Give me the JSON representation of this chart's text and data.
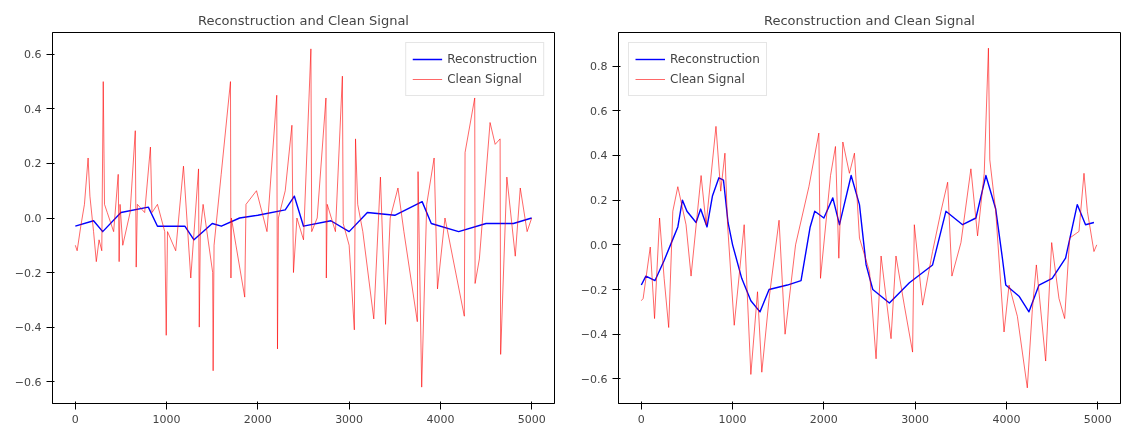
{
  "chart_data": [
    {
      "type": "line",
      "title": "Reconstruction and Clean Signal",
      "legend": "top right",
      "grid": false,
      "xlim": [
        -250,
        5250
      ],
      "ylim": [
        -0.68,
        0.68
      ],
      "xticks": [
        0,
        1000,
        2000,
        3000,
        4000,
        5000
      ],
      "yticks": [
        {
          "value": -0.6,
          "label": "−0.6"
        },
        {
          "value": -0.4,
          "label": "−0.4"
        },
        {
          "value": -0.2,
          "label": "−0.2"
        },
        {
          "value": 0,
          "label": "0.0"
        },
        0.2,
        0.4,
        0.6
      ],
      "series": [
        {
          "name": "Reconstruction",
          "color": "#0000ff",
          "x": [
            0,
            200,
            300,
            500,
            800,
            900,
            1200,
            1300,
            1500,
            1600,
            1800,
            2000,
            2300,
            2400,
            2500,
            2800,
            3000,
            3200,
            3500,
            3800,
            3900,
            4200,
            4500,
            4800,
            5000
          ],
          "values": [
            -0.03,
            -0.01,
            -0.05,
            0.02,
            0.04,
            -0.03,
            -0.03,
            -0.08,
            -0.02,
            -0.03,
            0.0,
            0.01,
            0.03,
            0.08,
            -0.03,
            -0.01,
            -0.05,
            0.02,
            0.01,
            0.06,
            -0.02,
            -0.05,
            -0.02,
            -0.02,
            0.0
          ]
        },
        {
          "name": "Clean Signal",
          "color": "#ff0000",
          "x": [
            0,
            20,
            60,
            100,
            140,
            160,
            200,
            230,
            260,
            290,
            306,
            320,
            350,
            420,
            470,
            480,
            490,
            520,
            600,
            657,
            667,
            680,
            760,
            823,
            840,
            900,
            980,
            996,
            1010,
            1100,
            1185,
            1265,
            1350,
            1358,
            1370,
            1400,
            1505,
            1510,
            1520,
            1598,
            1700,
            1705,
            1710,
            1760,
            1856,
            1870,
            1985,
            2100,
            2207,
            2215,
            2225,
            2300,
            2373,
            2390,
            2428,
            2500,
            2581,
            2590,
            2650,
            2746,
            2750,
            2760,
            2850,
            2926,
            2935,
            3000,
            3057,
            3070,
            3094,
            3150,
            3270,
            3343,
            3399,
            3450,
            3535,
            3600,
            3747,
            3755,
            3795,
            3850,
            3931,
            3968,
            4050,
            4262,
            4270,
            4376,
            4380,
            4427,
            4544,
            4600,
            4654,
            4660,
            4728,
            4820,
            4875,
            4950,
            5000
          ],
          "values": [
            -0.1,
            -0.12,
            -0.03,
            0.05,
            0.22,
            0.08,
            -0.05,
            -0.16,
            -0.08,
            -0.12,
            0.5,
            0.05,
            0.02,
            -0.05,
            0.16,
            -0.16,
            0.05,
            -0.1,
            0.02,
            0.32,
            -0.18,
            0.05,
            0.02,
            0.26,
            0.02,
            0.05,
            -0.05,
            -0.43,
            -0.05,
            -0.12,
            0.19,
            -0.22,
            0.18,
            -0.4,
            -0.05,
            0.05,
            -0.2,
            -0.56,
            -0.1,
            0.16,
            0.5,
            -0.22,
            0.0,
            -0.1,
            -0.29,
            0.05,
            0.1,
            -0.05,
            0.45,
            -0.48,
            0.0,
            0.1,
            0.34,
            -0.2,
            0.0,
            -0.08,
            0.62,
            -0.05,
            0.0,
            0.44,
            -0.22,
            0.05,
            -0.05,
            0.52,
            -0.02,
            -0.1,
            -0.41,
            0.29,
            0.05,
            -0.05,
            -0.37,
            0.15,
            -0.39,
            0.0,
            0.11,
            -0.05,
            -0.38,
            0.17,
            -0.62,
            0.05,
            0.22,
            -0.26,
            0.0,
            -0.36,
            0.24,
            0.44,
            -0.24,
            -0.15,
            0.35,
            0.27,
            0.29,
            -0.5,
            0.15,
            -0.14,
            0.11,
            -0.05,
            0.0
          ]
        }
      ]
    },
    {
      "type": "line",
      "title": "Reconstruction and Clean Signal",
      "legend": "top left",
      "grid": false,
      "xlim": [
        -250,
        5250
      ],
      "ylim": [
        -0.71,
        0.95
      ],
      "xticks": [
        0,
        1000,
        2000,
        3000,
        4000,
        5000
      ],
      "yticks": [
        {
          "value": -0.6,
          "label": "−0.6"
        },
        {
          "value": -0.4,
          "label": "−0.4"
        },
        {
          "value": -0.2,
          "label": "−0.2"
        },
        {
          "value": 0,
          "label": "0.0"
        },
        0.2,
        0.4,
        0.6,
        0.8
      ],
      "series": [
        {
          "name": "Reconstruction",
          "color": "#0000ff",
          "x": [
            0,
            50,
            150,
            250,
            350,
            400,
            450,
            500,
            600,
            650,
            720,
            780,
            850,
            900,
            950,
            1000,
            1100,
            1200,
            1300,
            1400,
            1600,
            1750,
            1850,
            1900,
            2000,
            2098,
            2171,
            2299,
            2390,
            2463,
            2536,
            2718,
            2937,
            3191,
            3337,
            3520,
            3666,
            3775,
            3883,
            3956,
            3993,
            4138,
            4247,
            4357,
            4502,
            4648,
            4776,
            4867,
            4959
          ],
          "values": [
            -0.18,
            -0.14,
            -0.16,
            -0.07,
            0.03,
            0.08,
            0.2,
            0.15,
            0.1,
            0.16,
            0.08,
            0.22,
            0.3,
            0.29,
            0.1,
            0.0,
            -0.15,
            -0.25,
            -0.3,
            -0.2,
            -0.18,
            -0.16,
            0.08,
            0.15,
            0.12,
            0.21,
            0.09,
            0.31,
            0.18,
            -0.09,
            -0.2,
            -0.26,
            -0.17,
            -0.09,
            0.15,
            0.09,
            0.12,
            0.31,
            0.16,
            -0.06,
            -0.18,
            -0.23,
            -0.3,
            -0.18,
            -0.15,
            -0.06,
            0.18,
            0.09,
            0.1
          ]
        },
        {
          "name": "Clean Signal",
          "color": "#ff0000",
          "x": [
            0,
            20,
            98,
            145,
            200,
            250,
            300,
            345,
            400,
            490,
            545,
            655,
            710,
            818,
            870,
            916,
            945,
            1018,
            1127,
            1200,
            1273,
            1320,
            1400,
            1509,
            1575,
            1690,
            1836,
            1945,
            1963,
            2073,
            2127,
            2164,
            2208,
            2280,
            2335,
            2390,
            2500,
            2572,
            2627,
            2736,
            2790,
            2881,
            2972,
            2991,
            3082,
            3191,
            3283,
            3356,
            3403,
            3502,
            3611,
            3684,
            3757,
            3803,
            3818,
            3883,
            3974,
            4029,
            4120,
            4229,
            4284,
            4328,
            4430,
            4496,
            4576,
            4638,
            4693,
            4795,
            4850,
            4887,
            4959,
            4990
          ],
          "values": [
            -0.25,
            -0.24,
            -0.01,
            -0.33,
            0.12,
            -0.15,
            -0.37,
            0.15,
            0.26,
            0.09,
            -0.14,
            0.31,
            0.09,
            0.53,
            0.24,
            0.41,
            0.09,
            -0.36,
            0.09,
            -0.58,
            -0.21,
            -0.57,
            -0.24,
            0.11,
            -0.4,
            0.0,
            0.26,
            0.5,
            -0.15,
            0.31,
            0.44,
            -0.06,
            0.46,
            0.32,
            0.41,
            0.03,
            -0.12,
            -0.51,
            -0.05,
            -0.42,
            -0.05,
            -0.27,
            -0.48,
            0.09,
            -0.27,
            -0.03,
            0.15,
            0.28,
            -0.14,
            0.01,
            0.34,
            0.04,
            0.32,
            0.88,
            0.38,
            0.15,
            -0.39,
            -0.18,
            -0.32,
            -0.64,
            -0.29,
            -0.09,
            -0.52,
            0.01,
            -0.24,
            -0.33,
            0.03,
            0.06,
            0.32,
            0.15,
            -0.03,
            0.0
          ]
        }
      ]
    }
  ]
}
